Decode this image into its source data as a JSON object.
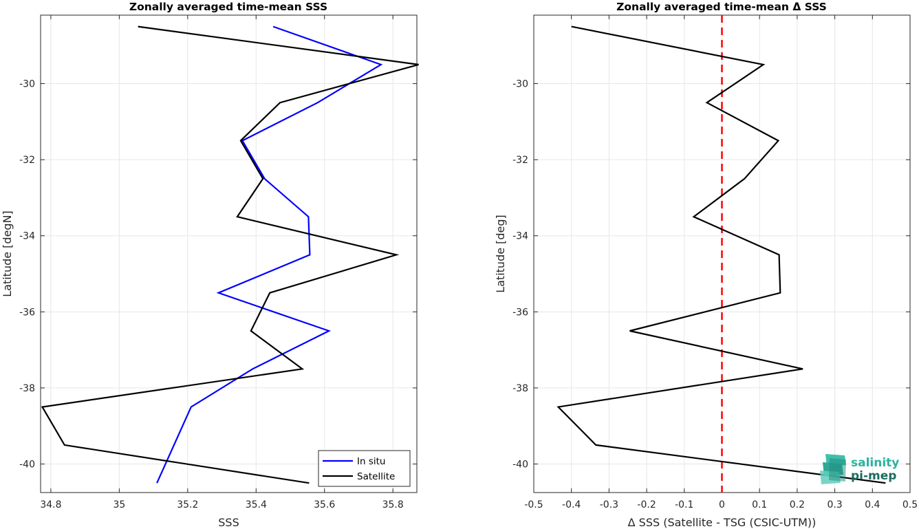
{
  "chart_data": [
    {
      "type": "line",
      "title": "Zonally averaged time-mean SSS",
      "xlabel": "SSS",
      "ylabel": "Latitude [degN]",
      "xlim": [
        34.77,
        35.87
      ],
      "ylim": [
        -40.75,
        -28.2
      ],
      "xticks": [
        34.8,
        35.0,
        35.2,
        35.4,
        35.6,
        35.8
      ],
      "xtick_labels": [
        "34.8",
        "35",
        "35.2",
        "35.4",
        "35.6",
        "35.8"
      ],
      "yticks": [
        -40,
        -38,
        -36,
        -34,
        -32,
        -30
      ],
      "ytick_labels": [
        "-40",
        "-38",
        "-36",
        "-34",
        "-32",
        "-30"
      ],
      "grid": true,
      "legend": "bottom-right",
      "series": [
        {
          "name": "In situ",
          "color": "#0000ff",
          "x": [
            35.45,
            35.765,
            35.58,
            35.36,
            35.425,
            35.553,
            35.557,
            35.29,
            35.613,
            35.39,
            35.21,
            35.11
          ],
          "y": [
            -28.5,
            -29.5,
            -30.5,
            -31.5,
            -32.5,
            -33.5,
            -34.5,
            -35.5,
            -36.5,
            -37.5,
            -38.5,
            -40.5
          ]
        },
        {
          "name": "Satellite",
          "color": "#000000",
          "x": [
            35.055,
            35.875,
            35.47,
            35.355,
            35.42,
            35.345,
            35.81,
            35.44,
            35.385,
            35.535,
            34.775,
            34.84,
            35.555
          ],
          "y": [
            -28.5,
            -29.5,
            -30.5,
            -31.5,
            -32.5,
            -33.5,
            -34.5,
            -35.5,
            -36.5,
            -37.5,
            -38.5,
            -39.5,
            -40.5
          ]
        }
      ]
    },
    {
      "type": "line",
      "title": "Zonally averaged time-mean Δ SSS",
      "xlabel": "Δ SSS (Satellite - TSG (CSIC-UTM))",
      "ylabel": "Latitude [deg]",
      "xlim": [
        -0.5,
        0.5
      ],
      "ylim": [
        -40.75,
        -28.2
      ],
      "xticks": [
        -0.5,
        -0.4,
        -0.3,
        -0.2,
        -0.1,
        0,
        0.1,
        0.2,
        0.3,
        0.4,
        0.5
      ],
      "xtick_labels": [
        "-0.5",
        "-0.4",
        "-0.3",
        "-0.2",
        "-0.1",
        "0",
        "0.1",
        "0.2",
        "0.3",
        "0.4",
        "0.5"
      ],
      "yticks": [
        -40,
        -38,
        -36,
        -34,
        -32,
        -30
      ],
      "ytick_labels": [
        "-40",
        "-38",
        "-36",
        "-34",
        "-32",
        "-30"
      ],
      "grid": true,
      "reference_line": {
        "x": 0,
        "color": "#ff0000",
        "style": "dashed"
      },
      "series": [
        {
          "color": "#000000",
          "x": [
            -0.4,
            0.11,
            -0.04,
            0.15,
            0.06,
            -0.075,
            0.152,
            0.155,
            -0.245,
            0.215,
            -0.435,
            -0.335,
            0.435
          ],
          "y": [
            -28.5,
            -29.5,
            -30.5,
            -31.5,
            -32.5,
            -33.5,
            -34.5,
            -35.5,
            -36.5,
            -37.5,
            -38.5,
            -39.5,
            -40.5
          ]
        }
      ]
    }
  ],
  "logo": {
    "line1": "salinity",
    "line2": "pi-mep"
  }
}
